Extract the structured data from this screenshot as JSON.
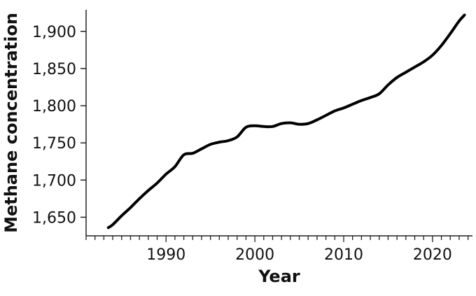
{
  "chart_data": {
    "type": "line",
    "title": "",
    "xlabel": "Year",
    "ylabel": "Methane concentration",
    "xlim": [
      1981,
      2024.5
    ],
    "ylim": [
      1625,
      1929
    ],
    "x_ticks_major": [
      1990,
      2000,
      2010,
      2020
    ],
    "x_tick_labels": [
      "1990",
      "2000",
      "2010",
      "2020"
    ],
    "y_ticks": [
      1650,
      1700,
      1750,
      1800,
      1850,
      1900
    ],
    "y_tick_labels": [
      "1,650",
      "1,700",
      "1,750",
      "1,800",
      "1,850",
      "1,900"
    ],
    "grid": false,
    "legend": "none",
    "series": [
      {
        "color": "#000000",
        "x": [
          1983.5,
          1984,
          1985,
          1986,
          1987,
          1988,
          1989,
          1990,
          1991,
          1992,
          1993,
          1994,
          1995,
          1996,
          1997,
          1998,
          1999,
          2000,
          2001,
          2002,
          2003,
          2004,
          2005,
          2006,
          2007,
          2008,
          2009,
          2010,
          2011,
          2012,
          2013,
          2014,
          2015,
          2016,
          2017,
          2018,
          2019,
          2020,
          2021,
          2022,
          2023,
          2023.6
        ],
        "y": [
          1636,
          1640,
          1652,
          1663,
          1675,
          1686,
          1696,
          1708,
          1718,
          1734,
          1736,
          1742,
          1748,
          1751,
          1753,
          1758,
          1771,
          1773,
          1772,
          1772,
          1776,
          1777,
          1775,
          1776,
          1781,
          1787,
          1793,
          1797,
          1802,
          1807,
          1811,
          1816,
          1828,
          1838,
          1845,
          1852,
          1859,
          1868,
          1881,
          1897,
          1914,
          1922
        ]
      }
    ]
  }
}
